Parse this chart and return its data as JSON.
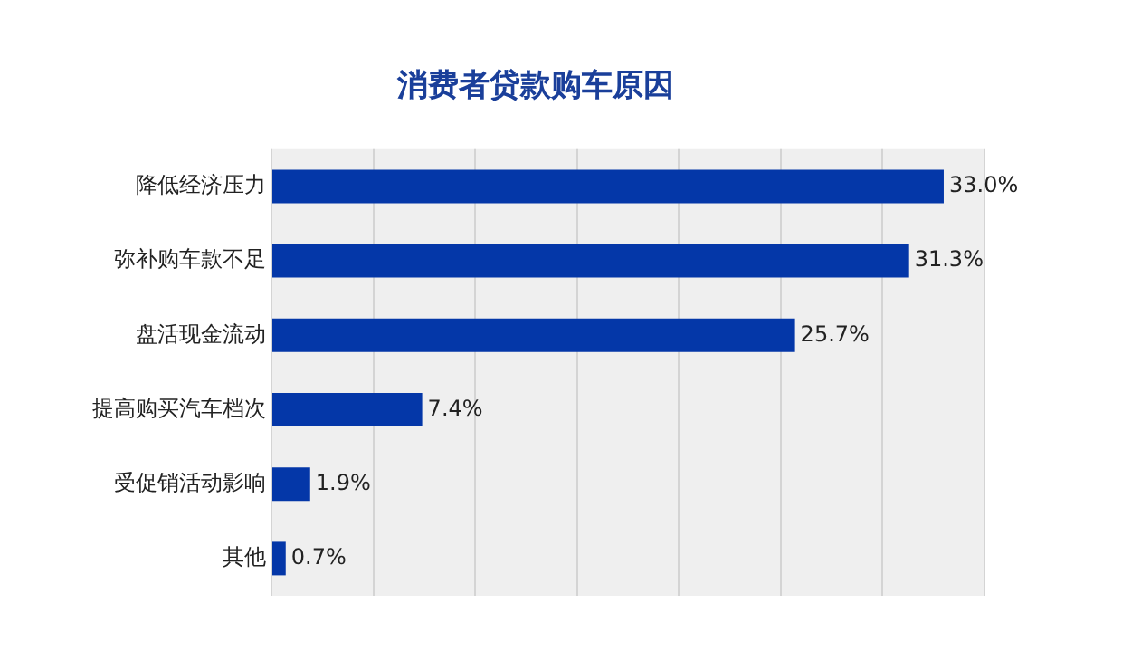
{
  "chart_data": {
    "type": "bar",
    "orientation": "horizontal",
    "title": "消费者贷款购车原因",
    "categories": [
      "降低经济压力",
      "弥补购车款不足",
      "盘活现金流动",
      "提高购买汽车档次",
      "受促销活动影响",
      "其他"
    ],
    "values": [
      33.0,
      31.3,
      25.7,
      7.4,
      1.9,
      0.7
    ],
    "value_labels": [
      "33.0%",
      "31.3%",
      "25.7%",
      "7.4%",
      "1.9%",
      "0.7%"
    ],
    "color": "#0437a8",
    "xlim": [
      0,
      35
    ],
    "xticks": [
      {
        "value": 0,
        "label": null
      },
      {
        "value": 5,
        "label": null
      },
      {
        "value": 10,
        "label": null
      },
      {
        "value": 15,
        "label": null
      },
      {
        "value": 20,
        "label": null
      },
      {
        "value": 25,
        "label": null
      },
      {
        "value": 30,
        "label": null
      },
      {
        "value": 35,
        "label": null
      }
    ],
    "grid": "x",
    "tick_labels": "y"
  }
}
